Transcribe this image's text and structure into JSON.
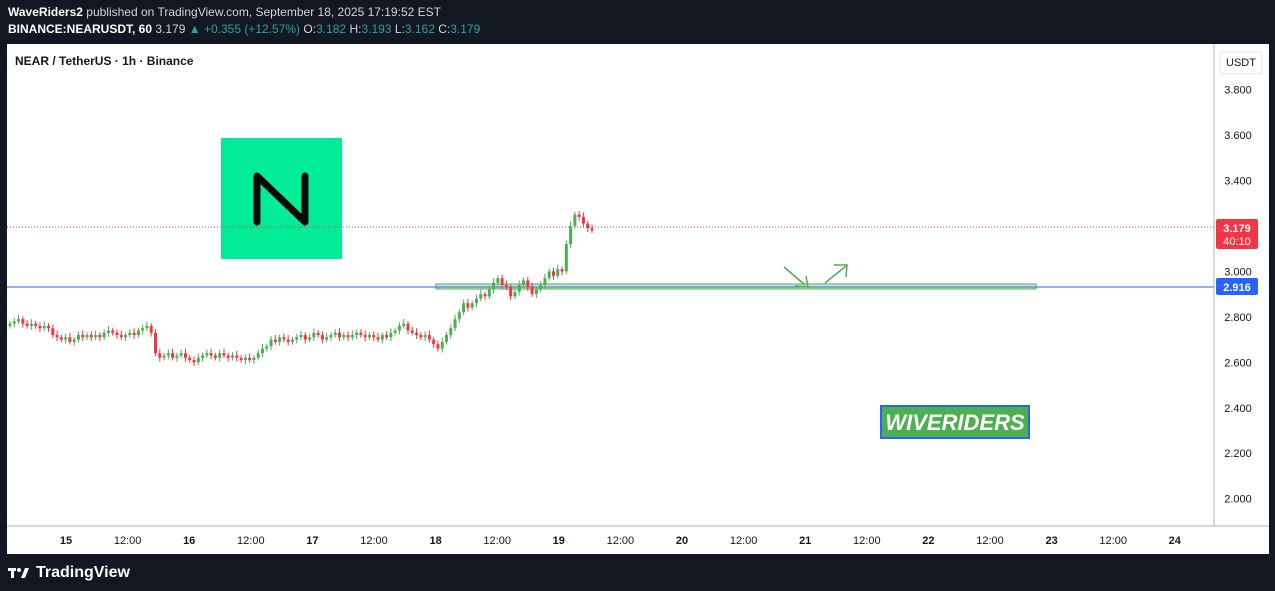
{
  "header": {
    "author": "WaveRiders2",
    "published_text": "published on TradingView.com, September 18, 2025 17:19:52 EST",
    "symbol": "BINANCE:NEARUSDT, 60",
    "last": "3.179",
    "change": "+0.355 (+12.57%)",
    "o_label": "O:",
    "o": "3.182",
    "h_label": "H:",
    "h": "3.193",
    "l_label": "L:",
    "l": "3.162",
    "c_label": "C:",
    "c": "3.179"
  },
  "chart_title": "NEAR / TetherUS · 1h · Binance",
  "watermark_text": "WIVERIDERS",
  "footer": {
    "brand": "TradingView"
  },
  "colors": {
    "up": "#26a69a",
    "candle_up": "#4caf50",
    "candle_down": "#f23645",
    "level": "#2962ff",
    "logo_bg": "#00ec97",
    "badge_bg": "#4caf50",
    "badge_border": "#2962ff",
    "price_badge": "#f23645"
  },
  "icons": [
    "near-logo-icon",
    "tradingview-logo-icon",
    "arrow-down-icon",
    "arrow-up-icon",
    "triangle-up-icon"
  ],
  "chart_data": {
    "type": "candlestick",
    "title": "NEAR / TetherUS · 1h · Binance",
    "y_axis_unit": "USDT",
    "ylim": [
      1.88,
      4.0
    ],
    "y_ticks": [
      "3.800",
      "3.600",
      "3.400",
      "3.200",
      "3.000",
      "2.800",
      "2.600",
      "2.400",
      "2.200",
      "2.000"
    ],
    "x_ticks": [
      "15",
      "12:00",
      "16",
      "12:00",
      "17",
      "12:00",
      "18",
      "12:00",
      "19",
      "12:00",
      "20",
      "12:00",
      "21",
      "12:00",
      "22",
      "12:00",
      "23",
      "12:00",
      "24"
    ],
    "current_price": {
      "label": "3.179",
      "countdown": "40:10",
      "value": 3.179
    },
    "support_level": {
      "label": "2.916",
      "value": 2.916
    },
    "series": [
      {
        "close": [
          2.77,
          2.78,
          2.79,
          2.77,
          2.76,
          2.77,
          2.76,
          2.75,
          2.76,
          2.75,
          2.72,
          2.71,
          2.7,
          2.71,
          2.69,
          2.7,
          2.72,
          2.71,
          2.72,
          2.71,
          2.72,
          2.71,
          2.73,
          2.74,
          2.73,
          2.72,
          2.71,
          2.72,
          2.73,
          2.72,
          2.74,
          2.75,
          2.76,
          2.73,
          2.64,
          2.62,
          2.63,
          2.64,
          2.62,
          2.63,
          2.64,
          2.62,
          2.61,
          2.6,
          2.62,
          2.63,
          2.64,
          2.63,
          2.62,
          2.64,
          2.63,
          2.62,
          2.63,
          2.62,
          2.61,
          2.62,
          2.61,
          2.62,
          2.64,
          2.66,
          2.67,
          2.7,
          2.69,
          2.71,
          2.7,
          2.69,
          2.7,
          2.71,
          2.72,
          2.7,
          2.71,
          2.73,
          2.72,
          2.7,
          2.71,
          2.72,
          2.73,
          2.71,
          2.72,
          2.71,
          2.72,
          2.73,
          2.72,
          2.71,
          2.72,
          2.71,
          2.7,
          2.72,
          2.71,
          2.73,
          2.74,
          2.76,
          2.77,
          2.74,
          2.73,
          2.72,
          2.71,
          2.72,
          2.7,
          2.68,
          2.66,
          2.69,
          2.72,
          2.75,
          2.79,
          2.82,
          2.86,
          2.84,
          2.86,
          2.88,
          2.9,
          2.89,
          2.92,
          2.95,
          2.97,
          2.94,
          2.93,
          2.89,
          2.91,
          2.94,
          2.96,
          2.93,
          2.9,
          2.92,
          2.94,
          2.97,
          3.0,
          2.98,
          3.01,
          3.0,
          3.12,
          3.2,
          3.25,
          3.24,
          3.21,
          3.19,
          3.18
        ]
      }
    ],
    "annotations": [
      "support zone",
      "arrow-down",
      "arrow-up"
    ]
  }
}
